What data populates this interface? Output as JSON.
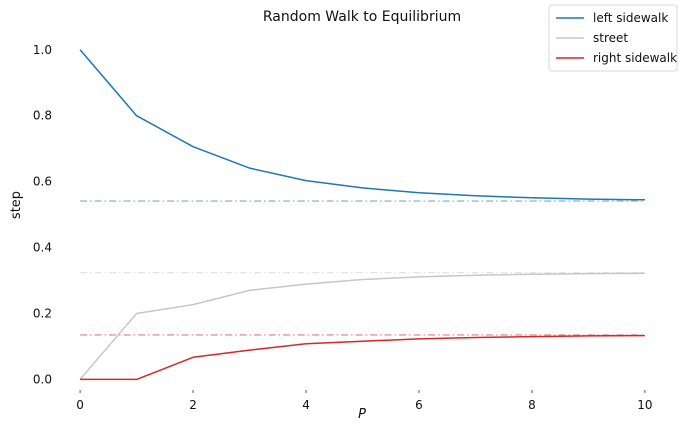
{
  "chart_data": {
    "type": "line",
    "title": "Random Walk to Equilibrium",
    "xlabel": "P",
    "ylabel": "step",
    "xlim": [
      -0.25,
      10.25
    ],
    "ylim": [
      -0.02,
      1.06
    ],
    "xticks": [
      0,
      2,
      4,
      6,
      8,
      10
    ],
    "xtick_labels": [
      "0",
      "2",
      "4",
      "6",
      "8",
      "10"
    ],
    "yticks": [
      0.0,
      0.2,
      0.4,
      0.6,
      0.8,
      1.0
    ],
    "ytick_labels": [
      "0.0",
      "0.2",
      "0.4",
      "0.6",
      "0.8",
      "1.0"
    ],
    "grid": false,
    "legend_position": "top-right",
    "x": [
      0,
      1,
      2,
      3,
      4,
      5,
      6,
      7,
      8,
      9,
      10
    ],
    "series": [
      {
        "name": "left sidewalk",
        "color": "#1f77b4",
        "values": [
          1.0,
          0.8,
          0.706,
          0.641,
          0.603,
          0.581,
          0.566,
          0.557,
          0.551,
          0.547,
          0.545
        ],
        "equilibrium": 0.541
      },
      {
        "name": "street",
        "color": "#c7c7c7",
        "values": [
          0.0,
          0.2,
          0.227,
          0.27,
          0.289,
          0.303,
          0.311,
          0.316,
          0.319,
          0.321,
          0.322
        ],
        "equilibrium": 0.324
      },
      {
        "name": "right sidewalk",
        "color": "#d62728",
        "values": [
          0.0,
          0.0,
          0.067,
          0.089,
          0.108,
          0.116,
          0.123,
          0.127,
          0.13,
          0.132,
          0.133
        ],
        "equilibrium": 0.135
      }
    ]
  }
}
